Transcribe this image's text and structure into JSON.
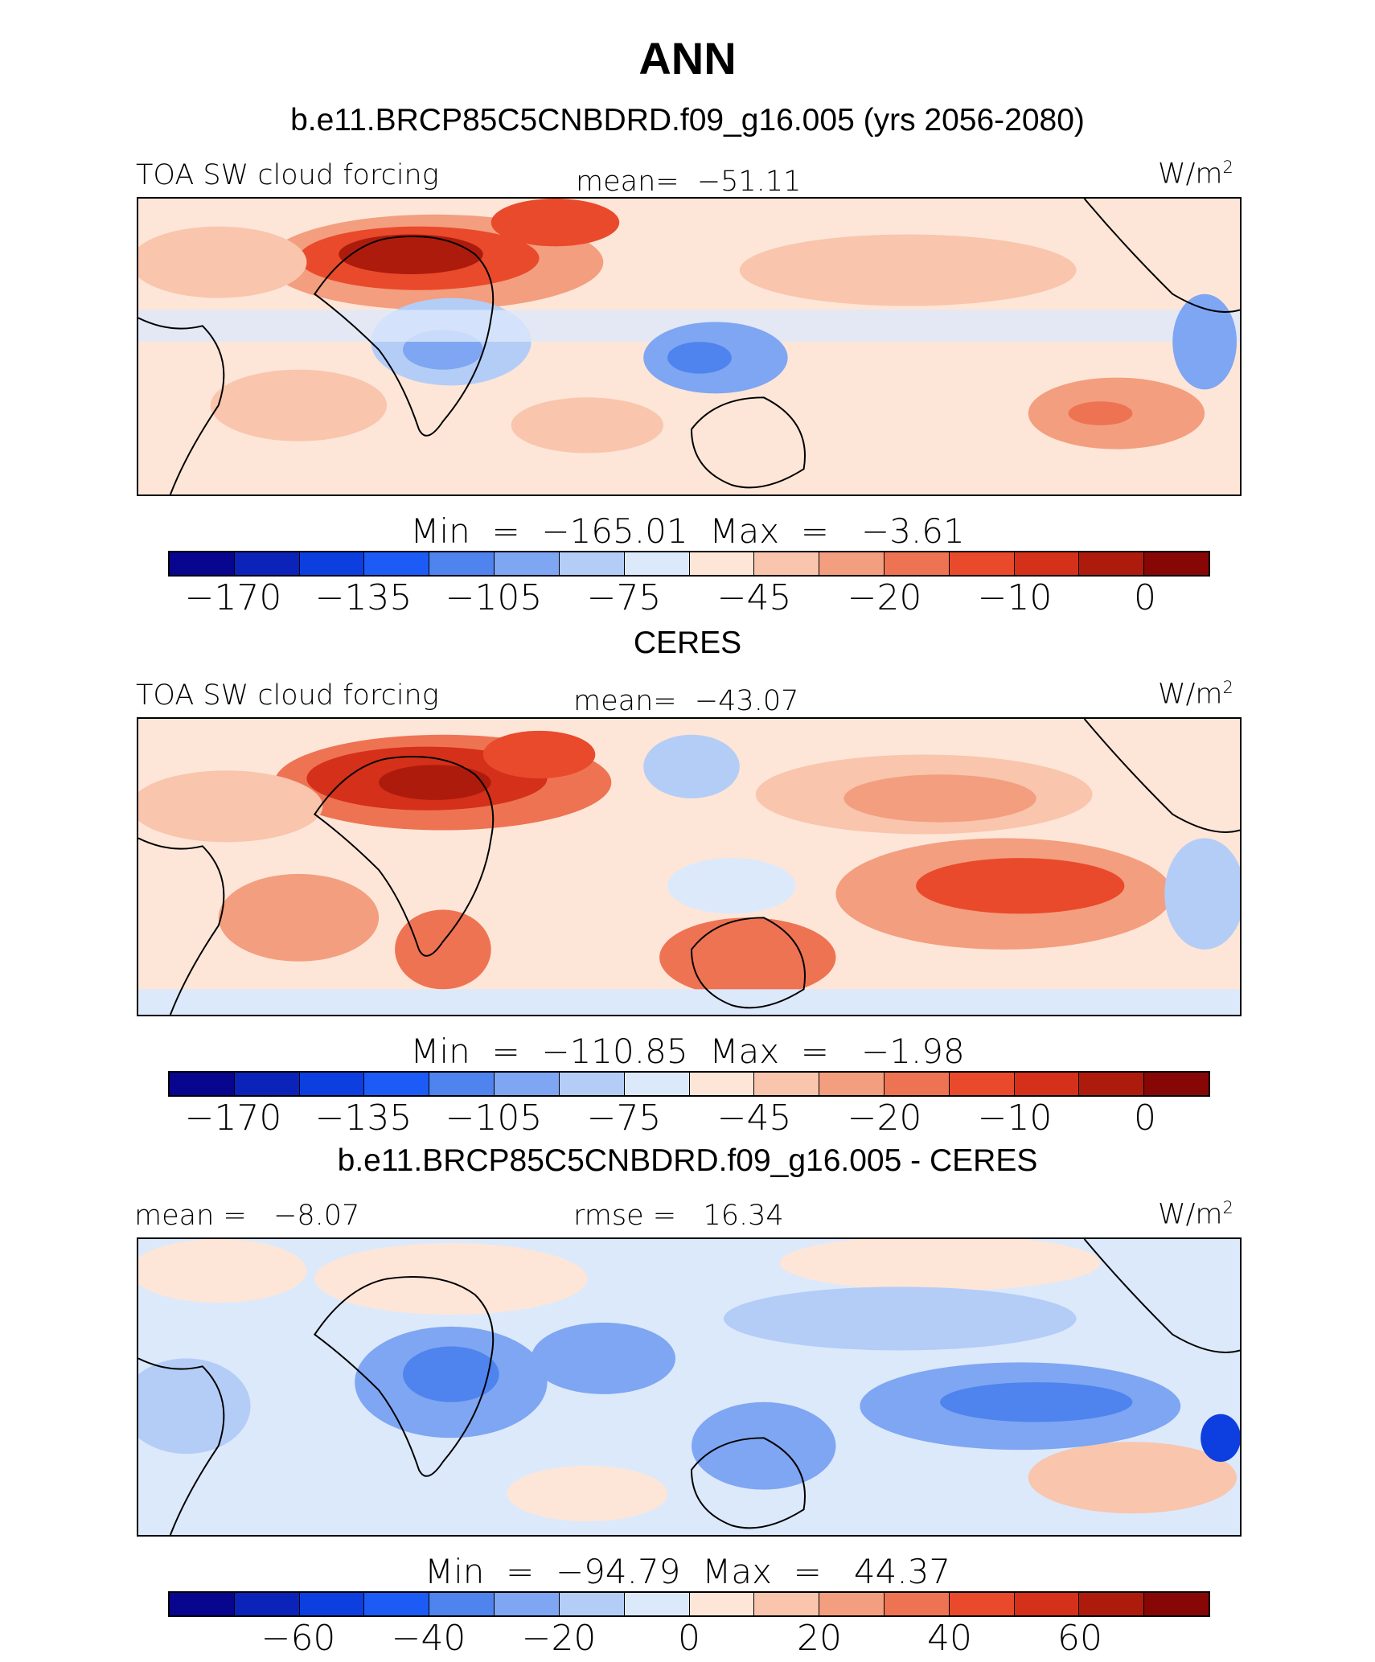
{
  "page": {
    "title": "ANN",
    "panels": [
      {
        "subtitle": "b.e11.BRCP85C5CNBDRD.f09_g16.005 (yrs 2056-2080)",
        "left_label": "TOA SW cloud forcing",
        "center_label": "mean=  −51.11",
        "units_label": "W/m",
        "units_sup": "2",
        "min_max": "Min  =  −165.01  Max  =   −3.61",
        "colorbar_ticks": [
          "−170",
          "−135",
          "−105",
          "−75",
          "−45",
          "−20",
          "−10",
          "0"
        ]
      },
      {
        "subtitle": "CERES",
        "left_label": "TOA SW cloud forcing",
        "center_label": "mean=  −43.07",
        "units_label": "W/m",
        "units_sup": "2",
        "min_max": "Min  =  −110.85  Max  =   −1.98",
        "colorbar_ticks": [
          "−170",
          "−135",
          "−105",
          "−75",
          "−45",
          "−20",
          "−10",
          "0"
        ]
      },
      {
        "subtitle": "b.e11.BRCP85C5CNBDRD.f09_g16.005 - CERES",
        "left_label": "mean =   −8.07",
        "center_label": "rmse =   16.34",
        "units_label": "W/m",
        "units_sup": "2",
        "min_max": "Min  =  −94.79  Max  =   44.37",
        "colorbar_ticks": [
          "−60",
          "−40",
          "−20",
          "0",
          "20",
          "40",
          "60"
        ]
      }
    ]
  },
  "colorbar_colors": [
    "#08058f",
    "#0b23b8",
    "#0c3ee0",
    "#1c5bf5",
    "#4f83ee",
    "#7ea6f2",
    "#b4cdf7",
    "#dce9fb",
    "#fde6d8",
    "#f9c5ad",
    "#f39e7f",
    "#ee7353",
    "#e94a2b",
    "#d4301a",
    "#ad1b0d",
    "#870707"
  ],
  "colors": {
    "background": "#ffffff",
    "land_outline": "#000000"
  }
}
